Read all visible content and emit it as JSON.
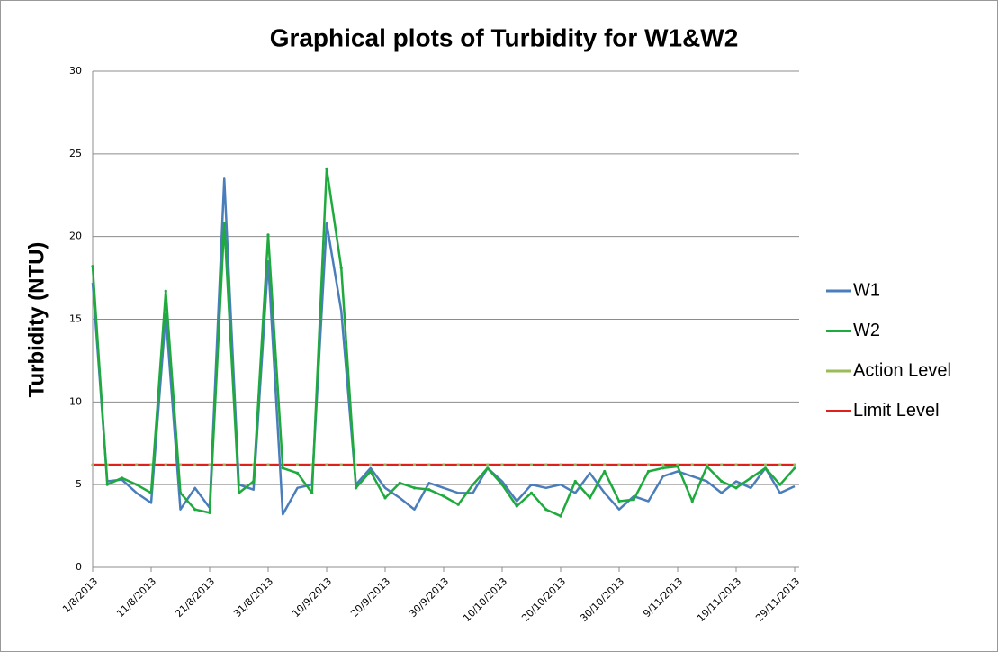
{
  "chart_data": {
    "type": "line",
    "title": "Graphical plots of Turbidity for W1&W2",
    "y_label": "Turbidity (NTU)",
    "categories": [
      "1/8/2013",
      null,
      null,
      null,
      "11/8/2013",
      null,
      null,
      null,
      "21/8/2013",
      null,
      null,
      null,
      "31/8/2013",
      null,
      null,
      null,
      "10/9/2013",
      null,
      null,
      null,
      "20/9/2013",
      null,
      null,
      null,
      "30/9/2013",
      null,
      null,
      null,
      "10/10/2013",
      null,
      null,
      null,
      "20/10/2013",
      null,
      null,
      null,
      "30/10/2013",
      null,
      null,
      null,
      "9/11/2013",
      null,
      null,
      null,
      "19/11/2013",
      null,
      null,
      null,
      "29/11/2013"
    ],
    "series": [
      {
        "name": "W1",
        "color": "#4a7ebb",
        "values": [
          17.2,
          5.2,
          5.3,
          4.5,
          3.9,
          15.3,
          3.5,
          4.8,
          3.6,
          23.5,
          5.0,
          4.7,
          18.5,
          3.2,
          4.8,
          5.0,
          20.8,
          15.5,
          5.0,
          6.0,
          4.8,
          4.2,
          3.5,
          5.1,
          4.8,
          4.5,
          4.5,
          6.0,
          5.2,
          4.0,
          5.0,
          4.8,
          5.0,
          4.5,
          5.7,
          4.5,
          3.5,
          4.3,
          4.0,
          5.5,
          5.8,
          5.5,
          5.2,
          4.5,
          5.2,
          4.8,
          6.0,
          4.5,
          4.9
        ]
      },
      {
        "name": "W2",
        "color": "#1eaa3c",
        "values": [
          18.2,
          5.0,
          5.4,
          5.0,
          4.5,
          16.7,
          4.5,
          3.5,
          3.3,
          20.8,
          4.5,
          5.2,
          20.1,
          6.0,
          5.7,
          4.5,
          24.1,
          18.1,
          4.8,
          5.8,
          4.2,
          5.1,
          4.8,
          4.7,
          4.3,
          3.8,
          5.0,
          6.0,
          5.0,
          3.7,
          4.5,
          3.5,
          3.1,
          5.2,
          4.2,
          5.8,
          4.0,
          4.1,
          5.8,
          6.0,
          6.1,
          4.0,
          6.1,
          5.2,
          4.8,
          5.4,
          6.0,
          5.0,
          6.0
        ]
      },
      {
        "name": "Action Level",
        "color": "#9bbb59",
        "values": [
          6.2,
          6.2,
          6.2,
          6.2,
          6.2,
          6.2,
          6.2,
          6.2,
          6.2,
          6.2,
          6.2,
          6.2,
          6.2,
          6.2,
          6.2,
          6.2,
          6.2,
          6.2,
          6.2,
          6.2,
          6.2,
          6.2,
          6.2,
          6.2,
          6.2,
          6.2,
          6.2,
          6.2,
          6.2,
          6.2,
          6.2,
          6.2,
          6.2,
          6.2,
          6.2,
          6.2,
          6.2,
          6.2,
          6.2,
          6.2,
          6.2,
          6.2,
          6.2,
          6.2,
          6.2,
          6.2,
          6.2,
          6.2,
          6.2
        ]
      },
      {
        "name": "Limit Level",
        "color": "#e0201b",
        "values": [
          6.2,
          6.2,
          6.2,
          6.2,
          6.2,
          6.2,
          6.2,
          6.2,
          6.2,
          6.2,
          6.2,
          6.2,
          6.2,
          6.2,
          6.2,
          6.2,
          6.2,
          6.2,
          6.2,
          6.2,
          6.2,
          6.2,
          6.2,
          6.2,
          6.2,
          6.2,
          6.2,
          6.2,
          6.2,
          6.2,
          6.2,
          6.2,
          6.2,
          6.2,
          6.2,
          6.2,
          6.2,
          6.2,
          6.2,
          6.2,
          6.2,
          6.2,
          6.2,
          6.2,
          6.2,
          6.2,
          6.2,
          6.2,
          6.2
        ]
      }
    ],
    "ylim": [
      0,
      30
    ],
    "yticks": [
      0,
      5,
      10,
      15,
      20,
      25,
      30
    ],
    "grid": true,
    "legend": "right"
  }
}
